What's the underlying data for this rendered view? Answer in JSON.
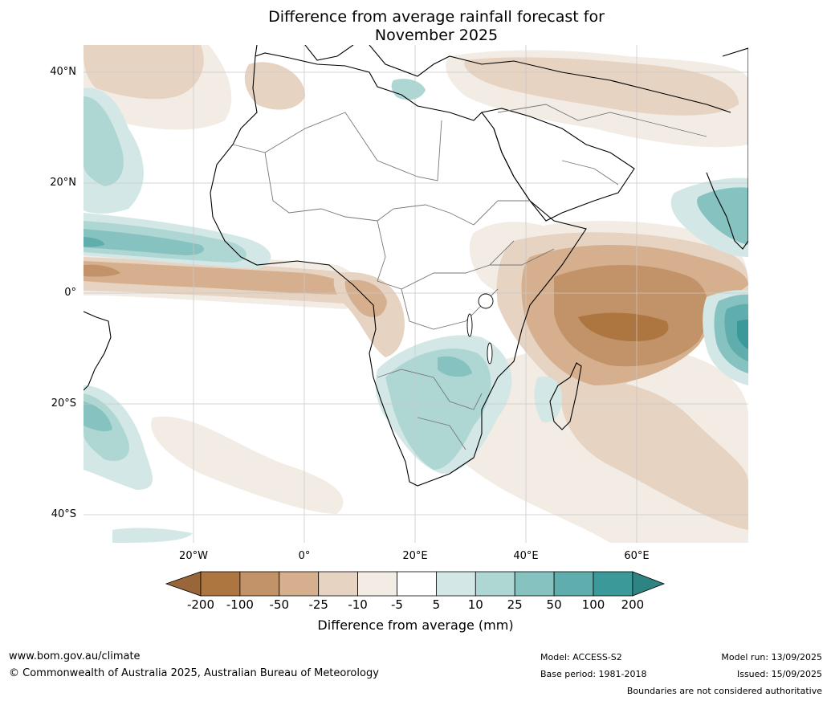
{
  "title": {
    "line1": "Difference from average rainfall forecast for",
    "line2": "November 2025"
  },
  "lat_labels": [
    "40°N",
    "20°N",
    "0°",
    "20°S",
    "40°S"
  ],
  "lon_labels": [
    "20°W",
    "0°",
    "20°E",
    "40°E",
    "60°E"
  ],
  "colorbar": {
    "ticks": [
      "-200",
      "-100",
      "-50",
      "-25",
      "-10",
      "-5",
      "5",
      "10",
      "25",
      "50",
      "100",
      "200"
    ],
    "label": "Difference from average (mm)",
    "colors": [
      "#986638",
      "#ad7640",
      "#c29368",
      "#d6b08e",
      "#e6d3c1",
      "#f2ece4",
      "#ffffff",
      "#d3e8e6",
      "#aed7d4",
      "#85c2c0",
      "#5fadac",
      "#3b9a99",
      "#2e8482"
    ]
  },
  "footer": {
    "url": "www.bom.gov.au/climate",
    "copyright": "© Commonwealth of Australia 2025, Australian Bureau of Meteorology",
    "model": "Model: ACCESS-S2",
    "base_period": "Base period: 1981-2018",
    "model_run": "Model run: 13/09/2025",
    "issued": "Issued: 15/09/2025",
    "disclaimer": "Boundaries are not considered authoritative"
  }
}
